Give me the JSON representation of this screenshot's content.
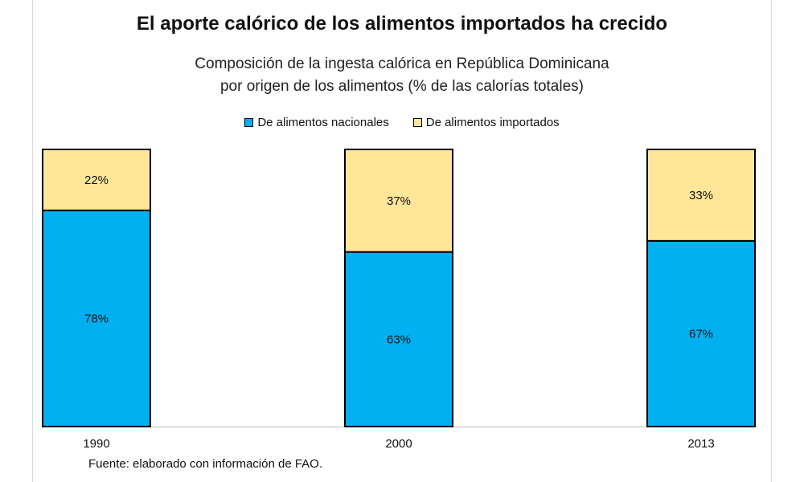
{
  "title": "El aporte calórico de los alimentos importados ha crecido",
  "subtitle_line1": "Composición de la ingesta calórica en República Dominicana",
  "subtitle_line2": "por origen de los alimentos  (% de las calorías totales)",
  "source": "Fuente: elaborado con información de FAO.",
  "colors": {
    "nacionales": "#00B0F0",
    "importados": "#FFE699",
    "border": "#000000"
  },
  "chart_data": {
    "type": "bar",
    "stacked": true,
    "categories": [
      "1990",
      "2000",
      "2013"
    ],
    "series": [
      {
        "name": "De alimentos nacionales",
        "values": [
          78,
          63,
          67
        ],
        "labels": [
          "78%",
          "63%",
          "67%"
        ]
      },
      {
        "name": "De alimentos importados",
        "values": [
          22,
          37,
          33
        ],
        "labels": [
          "22%",
          "37%",
          "33%"
        ]
      }
    ],
    "ylim": [
      0,
      100
    ],
    "legend_position": "top",
    "grid": false
  }
}
